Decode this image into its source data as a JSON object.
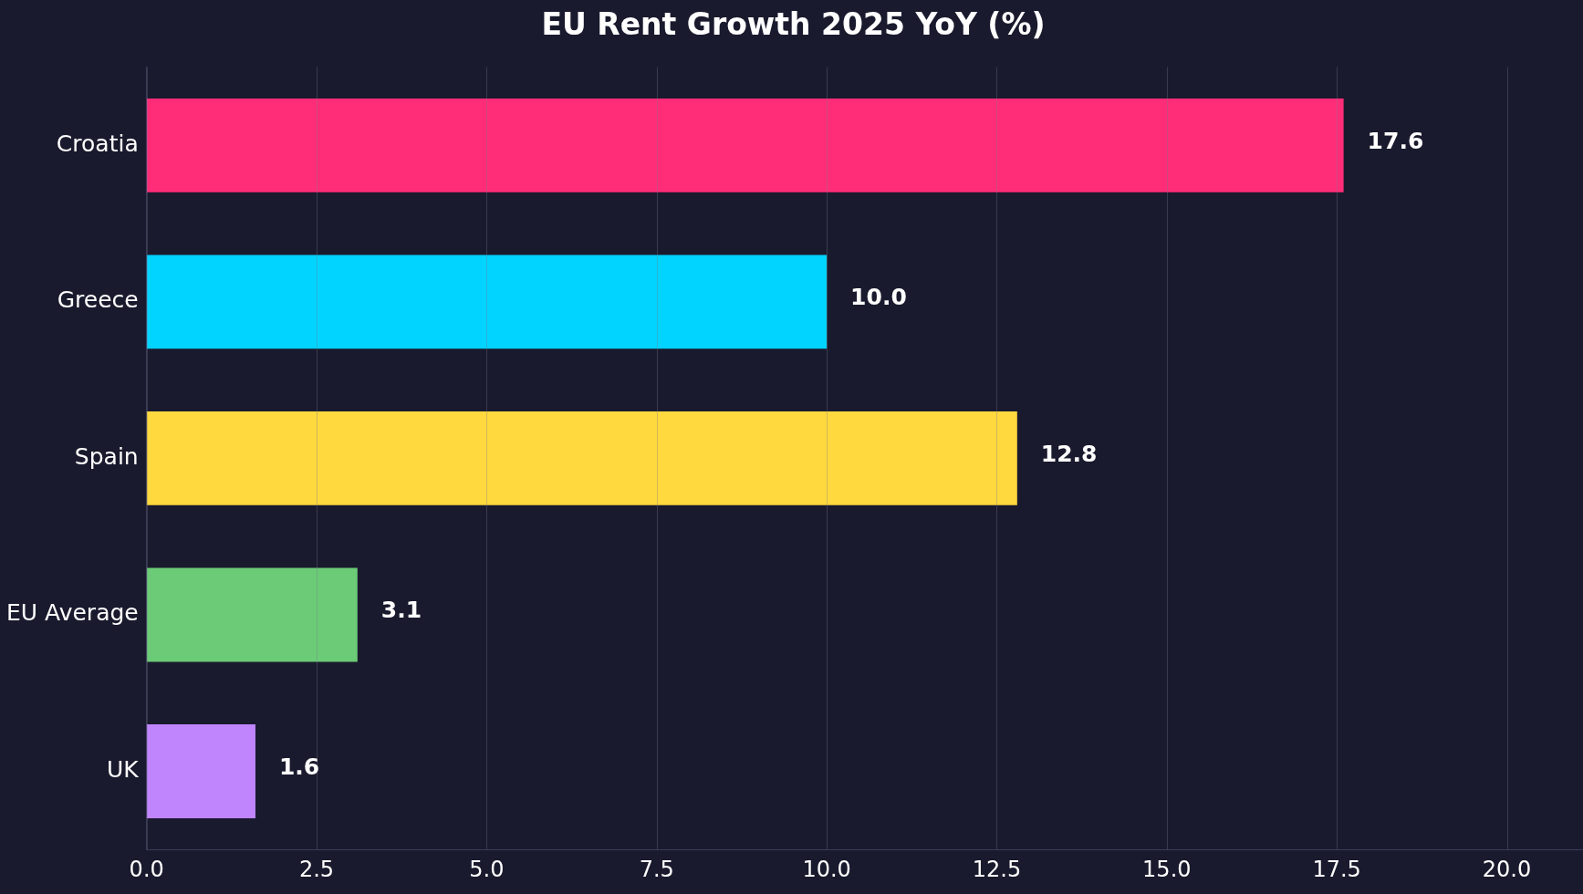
{
  "chart_data": {
    "type": "bar",
    "orientation": "horizontal",
    "title": "EU Rent Growth 2025 YoY (%)",
    "categories": [
      "Croatia",
      "Greece",
      "Spain",
      "EU Average",
      "UK"
    ],
    "values": [
      17.6,
      10.0,
      12.8,
      3.1,
      1.6
    ],
    "colors": [
      "#ff2d78",
      "#00d4ff",
      "#ffd93d",
      "#6bcb77",
      "#c084fc"
    ],
    "value_labels": [
      "17.6",
      "10.0",
      "12.8",
      "3.1",
      "1.6"
    ],
    "xlim": [
      0,
      21.12
    ],
    "xticks": [
      {
        "value": 0,
        "label": "0.0"
      },
      {
        "value": 2.5,
        "label": "2.5"
      },
      {
        "value": 5,
        "label": "5.0"
      },
      {
        "value": 7.5,
        "label": "7.5"
      },
      {
        "value": 10,
        "label": "10.0"
      },
      {
        "value": 12.5,
        "label": "12.5"
      },
      {
        "value": 15,
        "label": "15.0"
      },
      {
        "value": 17.5,
        "label": "17.5"
      },
      {
        "value": 20,
        "label": "20.0"
      }
    ],
    "grid": "x",
    "legend": false
  }
}
